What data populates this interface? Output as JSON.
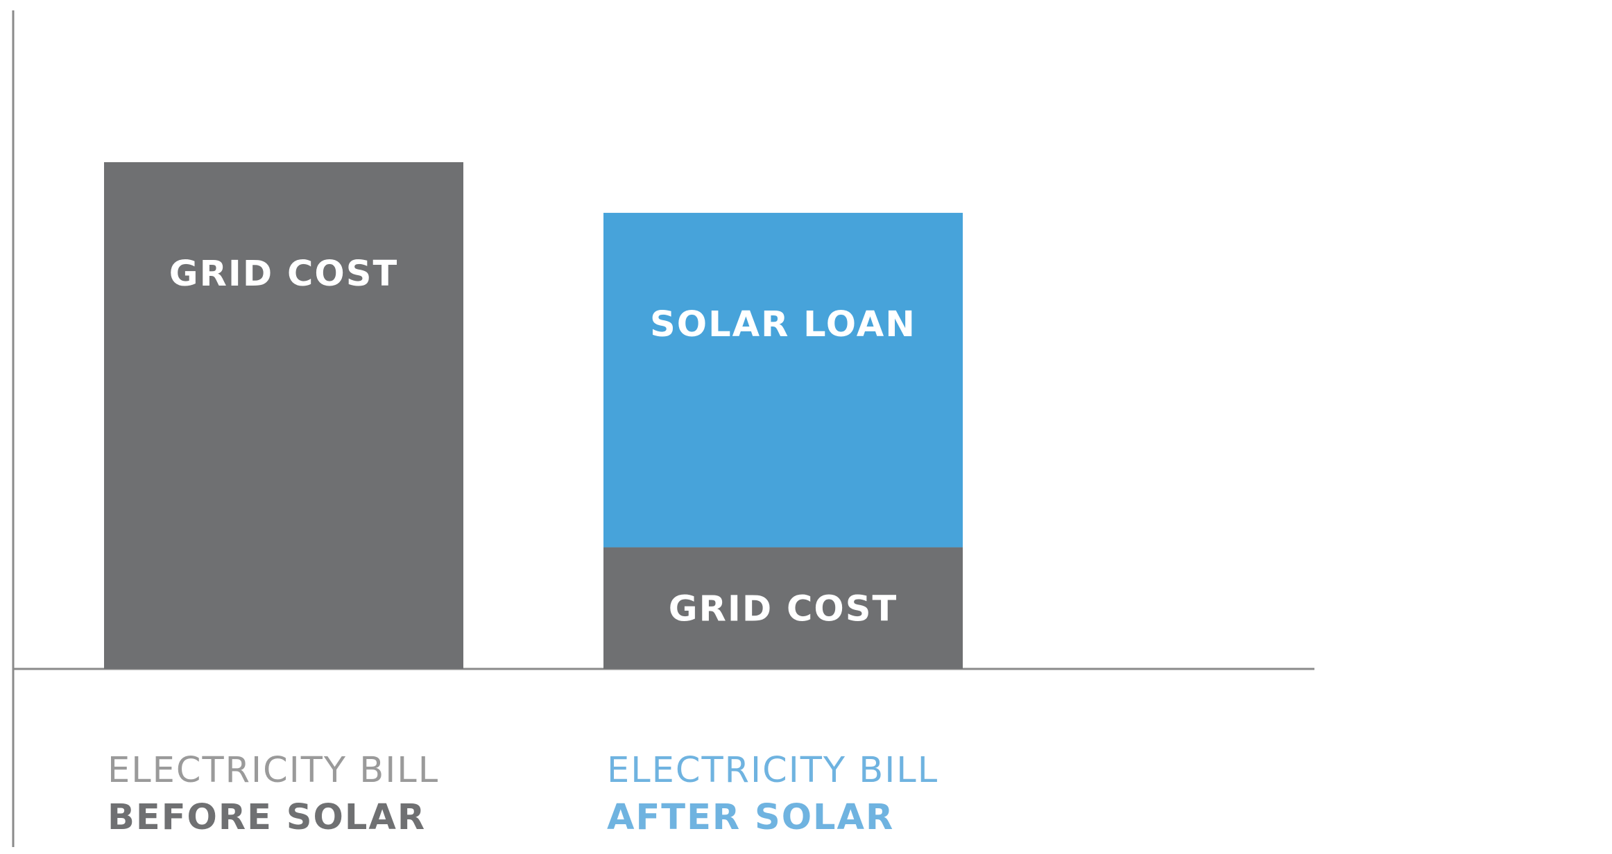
{
  "colors": {
    "grid_cost": "#6f7072",
    "solar_loan": "#47a3da",
    "axis": "#8a8a8a",
    "label_before_top": "#9a9a9a",
    "label_before_bottom": "#6f7072",
    "label_after": "#6fb3e0"
  },
  "chart_data": {
    "type": "bar",
    "stacked": true,
    "categories": [
      {
        "line1": "ELECTRICITY BILL",
        "line2": "BEFORE SOLAR"
      },
      {
        "line1": "ELECTRICITY BILL",
        "line2": "AFTER SOLAR"
      }
    ],
    "segments": [
      [
        {
          "label": "GRID COST",
          "value": 100,
          "color_key": "grid_cost"
        }
      ],
      [
        {
          "label": "GRID COST",
          "value": 24,
          "color_key": "grid_cost"
        },
        {
          "label": "SOLAR LOAN",
          "value": 66,
          "color_key": "solar_loan"
        }
      ]
    ],
    "ylim": [
      0,
      132
    ],
    "grid": false,
    "legend": "none"
  }
}
